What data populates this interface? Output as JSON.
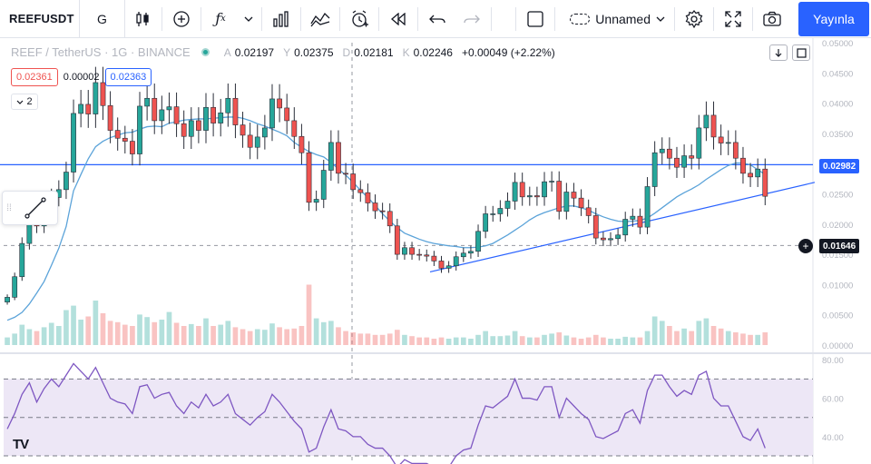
{
  "toolbar": {
    "symbol": "REEFUSDT",
    "interval": "G",
    "layout_name": "Unnamed",
    "publish_label": "Yayınla",
    "icons": [
      "candles-icon",
      "add-indicator-icon",
      "fx-icon",
      "chevron-down-icon",
      "bar-chart-icon",
      "compare-icon",
      "alert-icon",
      "replay-icon",
      "undo-icon",
      "redo-icon",
      "layout-square-icon",
      "cloud-icon",
      "chevron-down-icon",
      "settings-icon",
      "fullscreen-icon",
      "camera-icon"
    ]
  },
  "legend": {
    "pair": "REEF / TetherUS · 1G · BINANCE",
    "open_key": "A",
    "open": "0.02197",
    "high_key": "Y",
    "high": "0.02375",
    "low_key": "D",
    "low": "0.02181",
    "close_key": "K",
    "close": "0.02246",
    "change": "+0.00049 (+2.22%)",
    "sell_price": "0.02361",
    "spread": "0.00002",
    "buy_price": "0.02363",
    "indicators_count": "2"
  },
  "price_axis": {
    "ticks": [
      "0.05000",
      "0.04500",
      "0.04000",
      "0.03500",
      "0.03000",
      "0.02500",
      "0.02000",
      "0.01500",
      "0.01000",
      "0.00500",
      "0.00000"
    ],
    "hline_label": "0.02982",
    "crosshair_label": "0.01646"
  },
  "rsi_axis": {
    "ticks": [
      "80.00",
      "60.00",
      "40.00"
    ]
  },
  "colors": {
    "up": "#26a69a",
    "down": "#ef5350",
    "candle_body": "#2a2e39",
    "ma": "#5ba3d9",
    "line": "#2962ff",
    "rsi": "#7e57c2",
    "rsi_band": "#ede7f6",
    "accent": "#2962ff"
  },
  "chart_data": {
    "type": "line",
    "series": [
      {
        "values": [
          0.0079,
          0.0113,
          0.0168,
          0.0205,
          0.0197,
          0.0225,
          0.0244,
          0.0257,
          0.0286,
          0.0383,
          0.0398,
          0.0382,
          0.0434,
          0.0396,
          0.0355,
          0.0342,
          0.0337,
          0.0316,
          0.0395,
          0.0408,
          0.0371,
          0.0389,
          0.0394,
          0.0366,
          0.0345,
          0.0371,
          0.0355,
          0.0393,
          0.0367,
          0.0384,
          0.0408,
          0.0364,
          0.0347,
          0.0327,
          0.0344,
          0.0359,
          0.0407,
          0.0392,
          0.0371,
          0.0345,
          0.0318,
          0.0236,
          0.0241,
          0.0289,
          0.0335,
          0.0284,
          0.0283,
          0.0257,
          0.0252,
          0.0235,
          0.0222,
          0.0221,
          0.0197,
          0.015,
          0.0161,
          0.015,
          0.0149,
          0.0147,
          0.0139,
          0.0127,
          0.0131,
          0.0146,
          0.0152,
          0.0155,
          0.0188,
          0.0217,
          0.0217,
          0.0226,
          0.0238,
          0.0269,
          0.0245,
          0.0247,
          0.0245,
          0.027,
          0.0271,
          0.0221,
          0.0253,
          0.0243,
          0.0227,
          0.0214,
          0.0177,
          0.0174,
          0.0176,
          0.0182,
          0.0208,
          0.0213,
          0.0195,
          0.0262,
          0.0318,
          0.0324,
          0.0309,
          0.0294,
          0.0313,
          0.0309,
          0.0359,
          0.038,
          0.0344,
          0.0334,
          0.0335,
          0.0309,
          0.0284,
          0.0278,
          0.0291,
          0.0246
        ]
      },
      {
        "values": [
          0.0041,
          0.0046,
          0.0054,
          0.0068,
          0.0086,
          0.0105,
          0.0132,
          0.016,
          0.0196,
          0.0255,
          0.0282,
          0.0308,
          0.0328,
          0.0337,
          0.0343,
          0.0347,
          0.0351,
          0.0352,
          0.0357,
          0.0361,
          0.0362,
          0.0361,
          0.0367,
          0.0369,
          0.0372,
          0.0373,
          0.0374,
          0.0374,
          0.0375,
          0.0376,
          0.0377,
          0.0377,
          0.0375,
          0.0371,
          0.0366,
          0.0362,
          0.0357,
          0.0352,
          0.0346,
          0.0335,
          0.0327,
          0.032,
          0.0315,
          0.0311,
          0.0302,
          0.0291,
          0.0281,
          0.0269,
          0.0256,
          0.0244,
          0.0231,
          0.0217,
          0.0205,
          0.0194,
          0.0185,
          0.018,
          0.0175,
          0.0171,
          0.0168,
          0.0166,
          0.0164,
          0.0163,
          0.0161,
          0.0161,
          0.0162,
          0.0164,
          0.0168,
          0.0175,
          0.0182,
          0.019,
          0.0198,
          0.0207,
          0.0214,
          0.0219,
          0.0223,
          0.0227,
          0.023,
          0.023,
          0.0227,
          0.0223,
          0.0217,
          0.0212,
          0.0208,
          0.0205,
          0.0204,
          0.0205,
          0.0206,
          0.021,
          0.0218,
          0.0227,
          0.0236,
          0.0245,
          0.0252,
          0.0258,
          0.0265,
          0.0274,
          0.0282,
          0.029,
          0.0297,
          0.0301,
          0.0301,
          0.0298,
          0.029,
          0.0282
        ]
      }
    ],
    "ylim": [
      0,
      0.05
    ],
    "hline": 0.02982,
    "trendline": {
      "from_index": 63,
      "from_value": 0.0121,
      "to_index": 131,
      "to_value": 0.0269
    },
    "volume_relative": [
      0.12,
      0.18,
      0.32,
      0.25,
      0.22,
      0.28,
      0.35,
      0.3,
      0.55,
      0.62,
      0.4,
      0.45,
      0.7,
      0.5,
      0.38,
      0.36,
      0.32,
      0.3,
      0.48,
      0.44,
      0.36,
      0.4,
      0.52,
      0.35,
      0.3,
      0.33,
      0.3,
      0.42,
      0.3,
      0.32,
      0.38,
      0.28,
      0.25,
      0.22,
      0.25,
      0.24,
      0.34,
      0.28,
      0.25,
      0.26,
      0.3,
      0.95,
      0.42,
      0.36,
      0.38,
      0.28,
      0.22,
      0.2,
      0.18,
      0.18,
      0.16,
      0.16,
      0.18,
      0.24,
      0.16,
      0.14,
      0.12,
      0.12,
      0.1,
      0.12,
      0.1,
      0.12,
      0.12,
      0.1,
      0.16,
      0.22,
      0.14,
      0.14,
      0.15,
      0.22,
      0.14,
      0.12,
      0.12,
      0.16,
      0.18,
      0.2,
      0.15,
      0.12,
      0.1,
      0.12,
      0.16,
      0.12,
      0.1,
      0.1,
      0.13,
      0.12,
      0.12,
      0.22,
      0.45,
      0.38,
      0.3,
      0.22,
      0.26,
      0.22,
      0.38,
      0.42,
      0.3,
      0.26,
      0.22,
      0.2,
      0.18,
      0.16,
      0.16,
      0.2
    ],
    "rsi": [
      44,
      52,
      62,
      68,
      58,
      65,
      70,
      66,
      72,
      78,
      74,
      70,
      76,
      68,
      60,
      58,
      57,
      52,
      66,
      67,
      60,
      62,
      63,
      56,
      52,
      58,
      55,
      62,
      56,
      58,
      62,
      52,
      49,
      46,
      50,
      53,
      62,
      58,
      53,
      48,
      44,
      32,
      34,
      45,
      54,
      44,
      43,
      40,
      40,
      36,
      34,
      34,
      30,
      24,
      28,
      26,
      26,
      26,
      24,
      22,
      24,
      30,
      33,
      34,
      46,
      56,
      55,
      58,
      61,
      70,
      60,
      60,
      59,
      66,
      66,
      50,
      60,
      56,
      52,
      49,
      40,
      39,
      41,
      43,
      52,
      54,
      47,
      64,
      72,
      72,
      66,
      61,
      64,
      62,
      72,
      74,
      60,
      56,
      56,
      48,
      40,
      38,
      44,
      34
    ],
    "rsi_ylim": [
      30,
      82
    ],
    "rsi_band": [
      30,
      70
    ],
    "rsi_mid": 50
  }
}
